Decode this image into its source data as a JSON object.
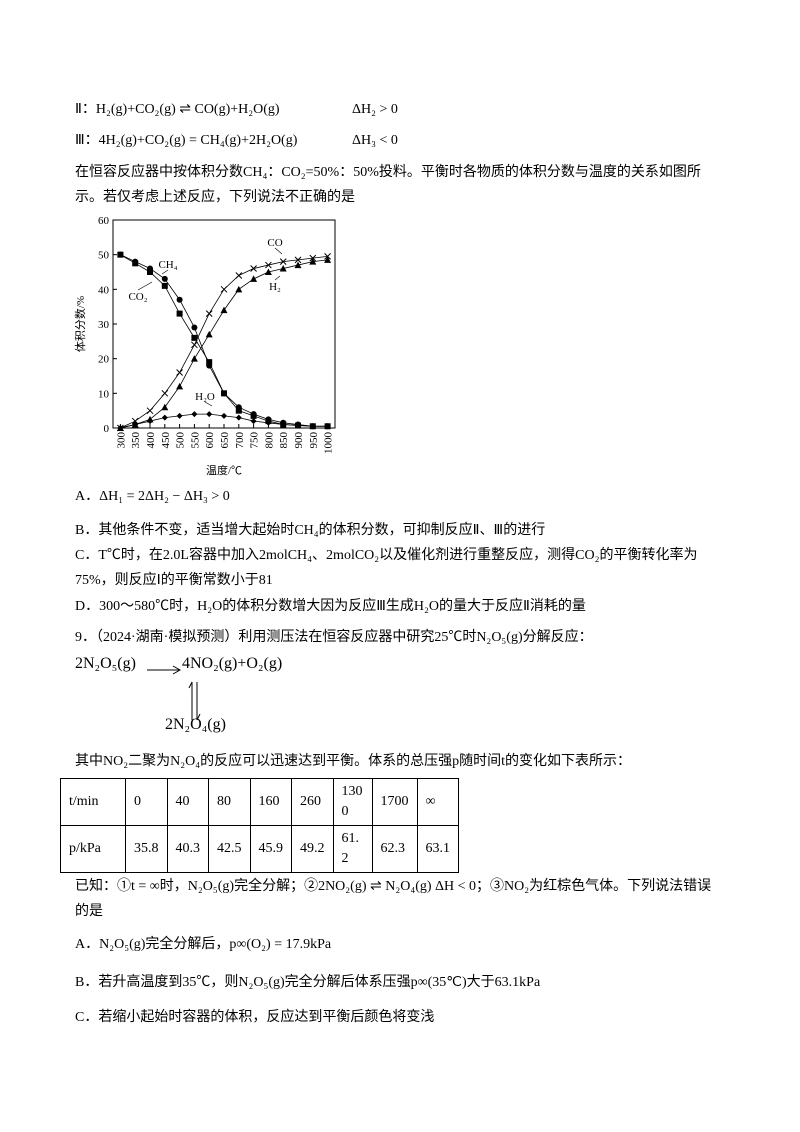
{
  "lines": {
    "eq2": "Ⅱ：H₂(g)+CO₂(g) ⇌ CO(g)+H₂O(g)",
    "eq2_dh": "ΔH₂ > 0",
    "eq3": "Ⅲ：4H₂(g)+CO₂(g) = CH₄(g)+2H₂O(g)",
    "eq3_dh": "ΔH₃ < 0",
    "intro": "在恒容反应器中按体积分数CH₄：CO₂=50%：50%投料。平衡时各物质的体积分数与温度的关系如图所示。若仅考虑上述反应，下列说法不正确的是"
  },
  "chart_data": {
    "type": "line",
    "ylabel": "体积分数/%",
    "xlabel": "温度/℃",
    "categories": [
      "300",
      "350",
      "400",
      "450",
      "500",
      "550",
      "600",
      "650",
      "700",
      "750",
      "800",
      "850",
      "900",
      "950",
      "1000"
    ],
    "ylim": [
      0,
      60
    ],
    "yticks": [
      0,
      10,
      20,
      30,
      40,
      50,
      60
    ],
    "series": [
      {
        "name": "CH₄",
        "color": "#000000",
        "marker": "circle",
        "values": [
          50,
          48,
          46,
          43,
          37,
          29,
          18,
          10,
          6,
          4,
          2.5,
          1.5,
          1,
          0.5,
          0.5
        ]
      },
      {
        "name": "CO₂",
        "color": "#000000",
        "marker": "square",
        "values": [
          50,
          47.5,
          45,
          41,
          33,
          26,
          19,
          10,
          5,
          3.5,
          2,
          1,
          0.7,
          0.5,
          0.5
        ]
      },
      {
        "name": "CO",
        "color": "#000000",
        "marker": "cross",
        "values": [
          0,
          2,
          5,
          10,
          16,
          24,
          33,
          40,
          44,
          46,
          47,
          48,
          48.5,
          49,
          49.5
        ]
      },
      {
        "name": "H₂",
        "color": "#000000",
        "marker": "triangle",
        "values": [
          0,
          1,
          2.5,
          6,
          12,
          20,
          27,
          34,
          40,
          43,
          45,
          46,
          47,
          48,
          48.5
        ]
      },
      {
        "name": "H₂O",
        "color": "#000000",
        "marker": "diamond",
        "values": [
          0,
          1,
          2,
          3,
          3.5,
          4,
          4,
          3.5,
          3,
          2,
          1.5,
          1,
          0.8,
          0.5,
          0.5
        ]
      }
    ]
  },
  "options8": [
    "A．ΔH₁ = 2ΔH₂ − ΔH₃ > 0",
    "B．其他条件不变，适当增大起始时CH₄的体积分数，可抑制反应Ⅱ、Ⅲ的进行",
    "C．T℃时，在2.0L容器中加入2molCH₄、2molCO₂以及催化剂进行重整反应，测得CO₂的平衡转化率为75%，则反应Ⅰ的平衡常数小于81",
    "D．300～580℃时，H₂O的体积分数增大因为反应Ⅲ生成H₂O的量大于反应Ⅱ消耗的量"
  ],
  "q9": {
    "stem": "9．（2024·湖南·模拟预测）利用测压法在恒容反应器中研究25℃时N₂O₅(g)分解反应：",
    "scheme": {
      "reactant": "2N₂O₅(g)",
      "products": "4NO₂(g)+O₂(g)",
      "dimer": "2N₂O₄(g)"
    },
    "note": "其中NO₂二聚为N₂O₄的反应可以迅速达到平衡。体系的总压强p随时间t的变化如下表所示：",
    "table": {
      "rows": [
        [
          "t/min",
          0,
          40,
          80,
          160,
          260,
          1300,
          1700,
          "∞"
        ],
        [
          "p/kPa",
          35.8,
          40.3,
          42.5,
          45.9,
          49.2,
          61.2,
          62.3,
          63.1
        ]
      ]
    },
    "known": "已知：①t = ∞时，N₂O₅(g)完全分解；②2NO₂(g) ⇌ N₂O₄(g) ΔH < 0；③NO₂为红棕色气体。下列说法错误的是",
    "options": [
      "A．N₂O₅(g)完全分解后，p∞(O₂) = 17.9kPa",
      "B．若升高温度到35℃，则N₂O₅(g)完全分解后体系压强p∞(35℃)大于63.1kPa",
      "C．若缩小起始时容器的体积，反应达到平衡后颜色将变浅"
    ]
  }
}
